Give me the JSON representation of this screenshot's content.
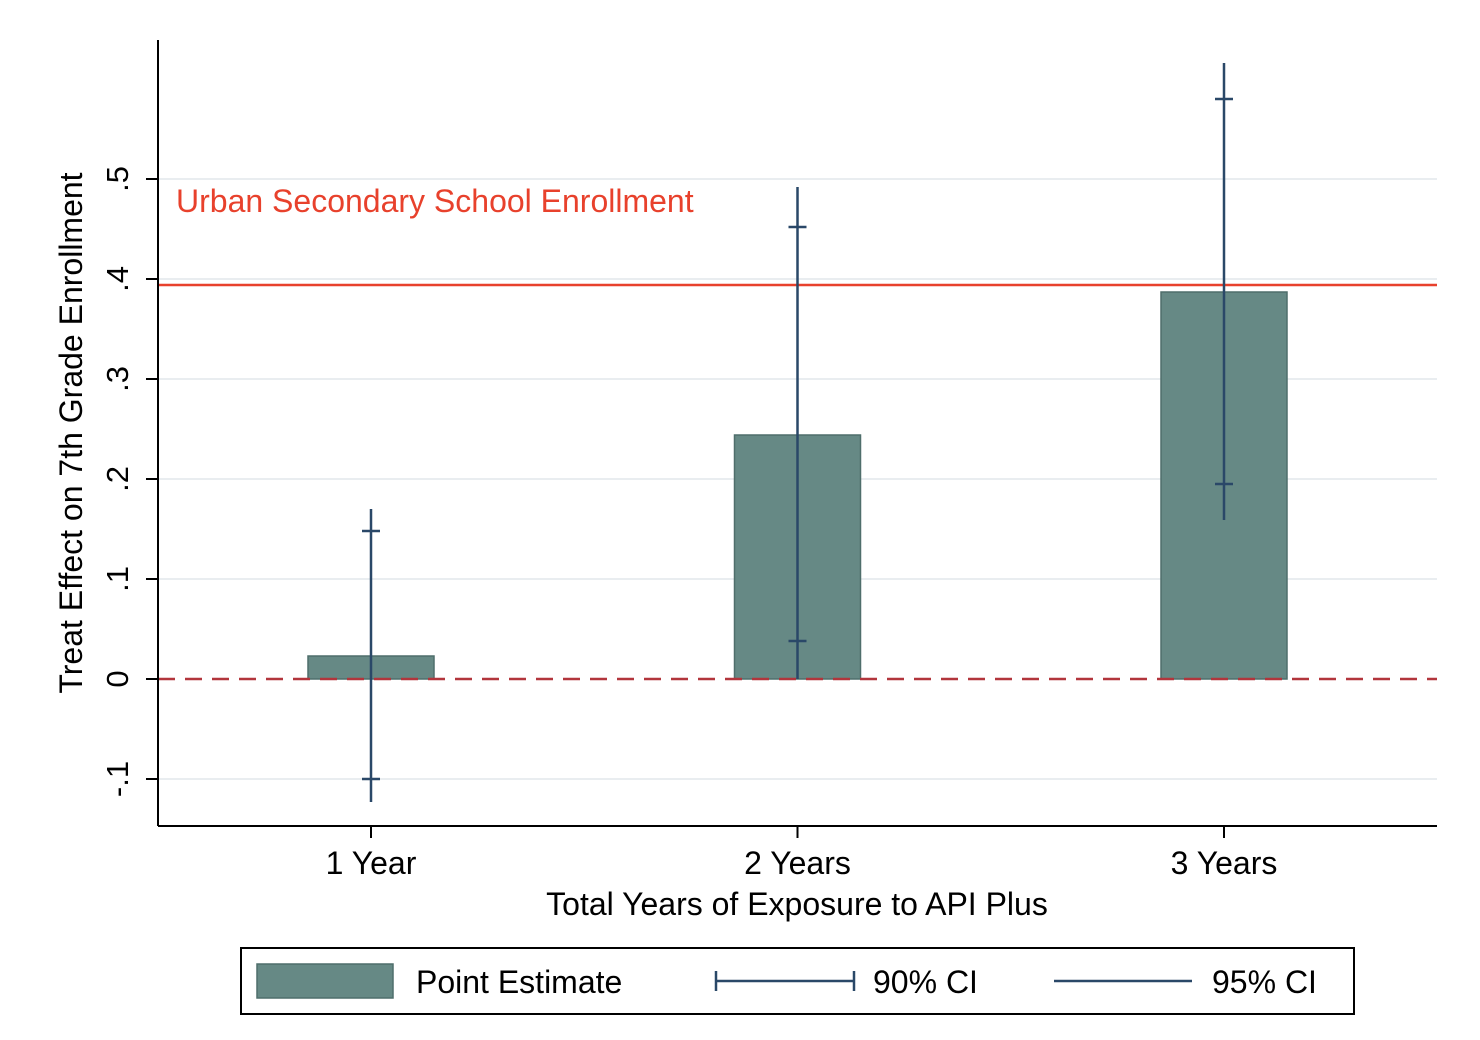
{
  "chart_data": {
    "type": "bar",
    "title": "",
    "xlabel": "Total Years of Exposure to API Plus",
    "ylabel": "Treat Effect on 7th Grade Enrollment",
    "categories": [
      "1 Year",
      "2 Years",
      "3 Years"
    ],
    "ylim": [
      -0.147,
      0.618
    ],
    "yticks": [
      -0.1,
      0,
      0.1,
      0.2,
      0.3,
      0.4,
      0.5
    ],
    "ytick_labels": [
      "-.1",
      "0",
      ".1",
      ".2",
      ".3",
      ".4",
      ".5"
    ],
    "grid": true,
    "series": [
      {
        "name": "Point Estimate",
        "values": [
          0.023,
          0.244,
          0.387
        ],
        "color": "#668985"
      }
    ],
    "ci90": [
      [
        -0.1,
        0.148
      ],
      [
        0.038,
        0.452
      ],
      [
        0.195,
        0.58
      ]
    ],
    "ci95": [
      [
        -0.123,
        0.17
      ],
      [
        0.0,
        0.492
      ],
      [
        0.159,
        0.616
      ]
    ],
    "ci_color": "#2a4868",
    "reference_lines": [
      {
        "y": 0.394,
        "label": "Urban Secondary School Enrollment",
        "color": "#e8412c",
        "style": "solid"
      },
      {
        "y": 0.0,
        "label": "",
        "color": "#b2353c",
        "style": "dashed"
      }
    ],
    "legend": {
      "position": "bottom",
      "items": [
        {
          "label": "Point Estimate",
          "kind": "bar"
        },
        {
          "label": "90% CI",
          "kind": "capped-line"
        },
        {
          "label": "95% CI",
          "kind": "line"
        }
      ]
    }
  }
}
